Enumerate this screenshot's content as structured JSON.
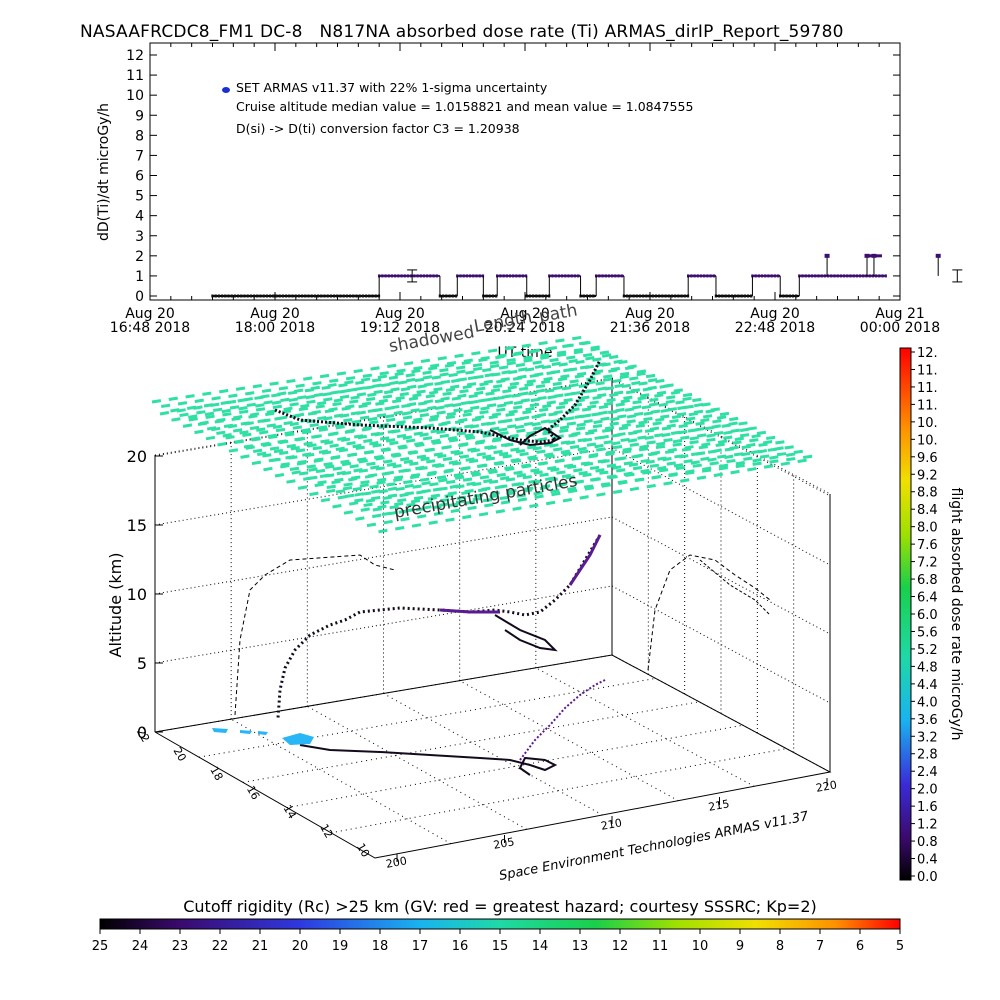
{
  "title": "NASAAFRCDC8_FM1 DC-8   N817NA absorbed dose rate (Ti) ARMAS_dirIP_Report_59780",
  "chart_data": [
    {
      "type": "scatter",
      "ylabel": "dD(Ti)/dt microGy/h",
      "xlabel": "UT time",
      "ylim": [
        0,
        12
      ],
      "yticks": [
        "0",
        "1",
        "2",
        "3",
        "4",
        "5",
        "6",
        "7",
        "8",
        "9",
        "10",
        "11",
        "12"
      ],
      "xticks": [
        {
          "line1": "Aug 20",
          "line2": "16:48 2018"
        },
        {
          "line1": "Aug 20",
          "line2": "18:00 2018"
        },
        {
          "line1": "Aug 20",
          "line2": "19:12 2018"
        },
        {
          "line1": "Aug 20",
          "line2": "20:24 2018"
        },
        {
          "line1": "Aug 20",
          "line2": "21:36 2018"
        },
        {
          "line1": "Aug 20",
          "line2": "22:48 2018"
        },
        {
          "line1": "Aug 21",
          "line2": "00:00 2018"
        }
      ],
      "legend": {
        "series_label": "SET ARMAS v11.37 with 22% 1-sigma uncertainty",
        "median_text": "Cruise altitude median value = 1.0158821 and mean value = 1.0847555",
        "conversion_text": "D(si) -> D(ti) conversion factor C3 = 1.20938",
        "marker_color": "#1a2fd0"
      },
      "series_color": "#3c0f6e",
      "dose_segments": [
        {
          "start": "17:24",
          "end": "19:00",
          "value": 0
        },
        {
          "start": "19:00",
          "end": "19:35",
          "value": 1
        },
        {
          "start": "19:35",
          "end": "19:45",
          "value": 0
        },
        {
          "start": "19:45",
          "end": "20:00",
          "value": 1
        },
        {
          "start": "20:00",
          "end": "20:08",
          "value": 0
        },
        {
          "start": "20:08",
          "end": "20:25",
          "value": 1
        },
        {
          "start": "20:25",
          "end": "20:38",
          "value": 0
        },
        {
          "start": "20:38",
          "end": "20:56",
          "value": 1
        },
        {
          "start": "20:56",
          "end": "21:05",
          "value": 0
        },
        {
          "start": "21:05",
          "end": "21:21",
          "value": 1
        },
        {
          "start": "21:21",
          "end": "21:58",
          "value": 0
        },
        {
          "start": "21:58",
          "end": "22:14",
          "value": 1
        },
        {
          "start": "22:14",
          "end": "22:35",
          "value": 0
        },
        {
          "start": "22:35",
          "end": "22:51",
          "value": 1
        },
        {
          "start": "22:51",
          "end": "23:02",
          "value": 0
        },
        {
          "start": "23:02",
          "end": "23:52",
          "value": 1
        }
      ],
      "dose_spikes": [
        {
          "t": "23:18",
          "value": 2
        },
        {
          "t": "23:41",
          "value": 2
        },
        {
          "t": "23:45",
          "value": 2
        },
        {
          "t": "24:22",
          "value": 2
        }
      ],
      "error_bars": [
        {
          "t": "19:19",
          "value": 1
        },
        {
          "t": "24:33",
          "value": 1
        }
      ]
    },
    {
      "type": "scatter3d",
      "zlabel": "Altitude (km)",
      "zticks": [
        "0",
        "5",
        "10",
        "15",
        "20"
      ],
      "xticks": [
        "200",
        "205",
        "210",
        "215",
        "220"
      ],
      "yticks": [
        "10",
        "12",
        "14",
        "16",
        "18",
        "20",
        "22"
      ],
      "plane_label": "precipitating particles",
      "path_labels": [
        "shadowed",
        "Length",
        "path"
      ],
      "credit": "Space Environment Technologies ARMAS v11.37",
      "right_colorbar": {
        "label": "flight absorbed dose rate microGy/h",
        "ticks": [
          "0.0",
          "0.4",
          "0.8",
          "1.2",
          "1.6",
          "2.0",
          "2.4",
          "2.8",
          "3.2",
          "3.6",
          "4.0",
          "4.4",
          "4.8",
          "5.2",
          "5.6",
          "6.0",
          "6.4",
          "6.8",
          "7.2",
          "7.6",
          "8.0",
          "8.4",
          "8.8",
          "9.2",
          "9.6",
          "10.",
          "10.",
          "11.",
          "11.",
          "11.",
          "12."
        ]
      },
      "bottom_colorbar": {
        "label": "Cutoff rigidity (Rc) >25 km (GV: red = greatest hazard; courtesy SSSRC; Kp=2)",
        "ticks": [
          "25",
          "24",
          "23",
          "22",
          "21",
          "20",
          "19",
          "18",
          "17",
          "16",
          "15",
          "14",
          "13",
          "12",
          "11",
          "10",
          "9",
          "8",
          "7",
          "6",
          "5"
        ]
      },
      "colors": {
        "plane": "#2ee0a4",
        "track": "#140a1e",
        "track_low": "#5a1a90",
        "ground_cyan": "#29b6f6",
        "ground_purple": "#6a2ca8"
      }
    }
  ]
}
